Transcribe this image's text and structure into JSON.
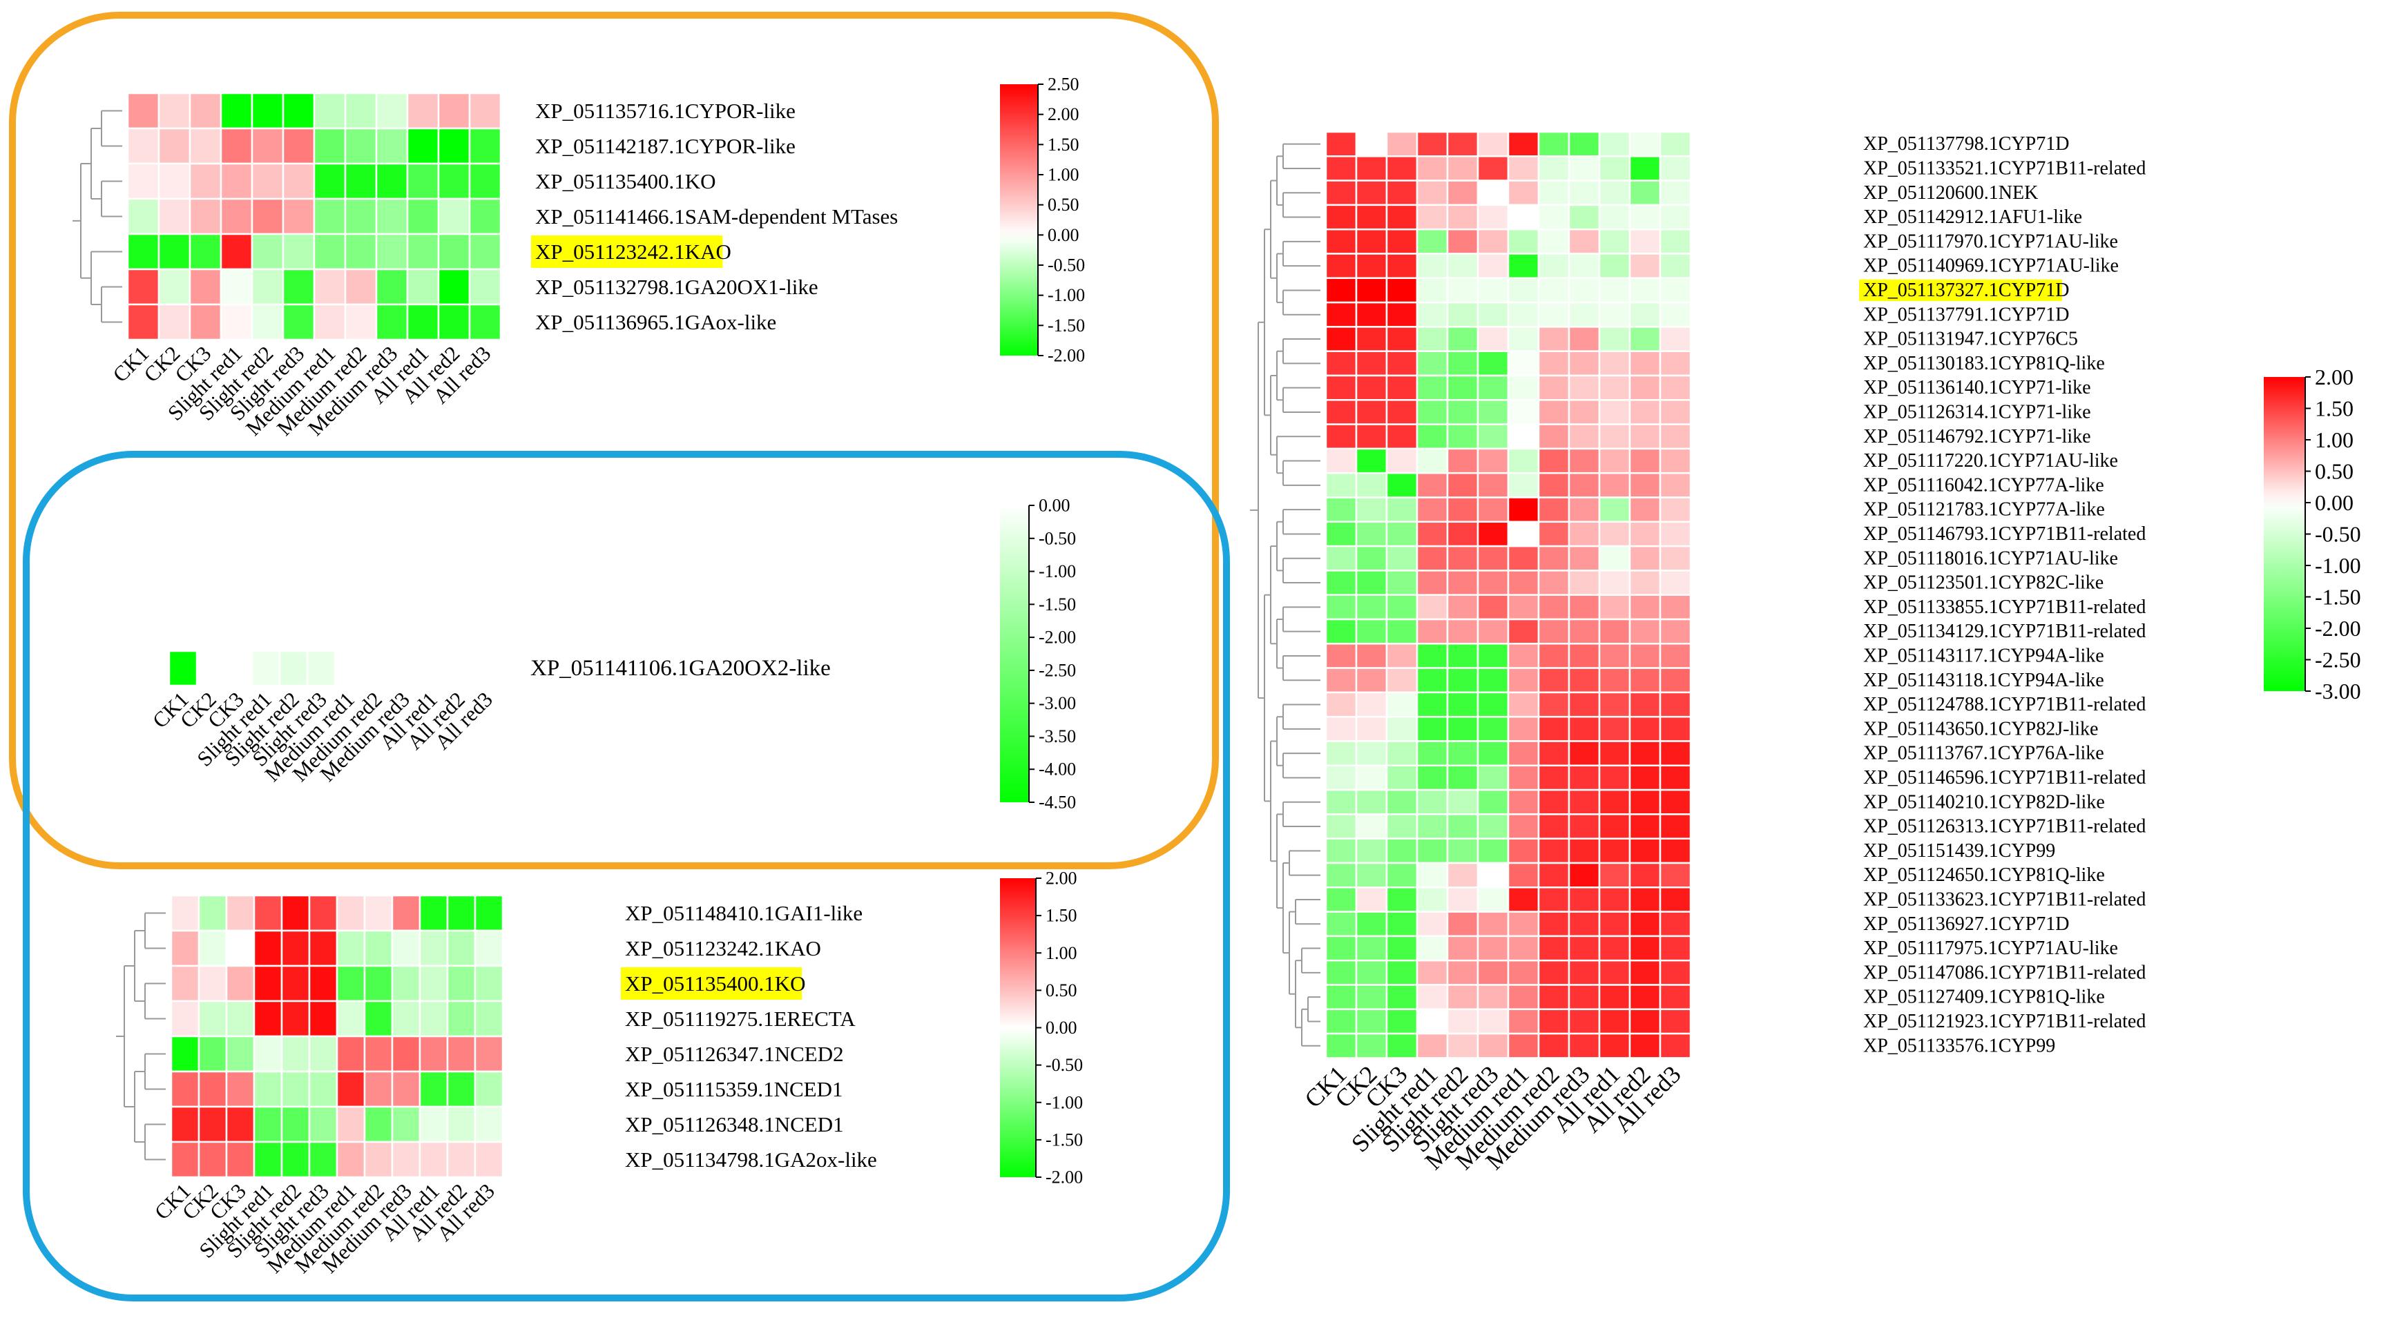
{
  "colors": {
    "orange_outline": "#F5A623",
    "blue_outline": "#1BA4DE",
    "highlight": "#FFFF00",
    "high": "#FF0000",
    "mid": "#FFFFFF",
    "low": "#00FF00",
    "tree": "#999999"
  },
  "chart_data": [
    {
      "id": "heatmap_tl",
      "type": "heatmap",
      "columns": [
        "CK1",
        "CK2",
        "CK3",
        "Slight red1",
        "Slight red2",
        "Slight red3",
        "Medium red1",
        "Medium red2",
        "Medium red3",
        "All red1",
        "All red2",
        "All red3"
      ],
      "rows": [
        "XP_051135716.1CYPOR-like",
        "XP_051142187.1CYPOR-like",
        "XP_051135400.1KO",
        "XP_051141466.1SAM-dependent MTases",
        "XP_051123242.1KAO",
        "XP_051132798.1GA20OX1-like",
        "XP_051136965.1GAox-like"
      ],
      "highlight_rows": [
        4
      ],
      "values": [
        [
          1.0,
          0.4,
          0.7,
          -2.2,
          -2.2,
          -2.2,
          -0.5,
          -0.5,
          -0.3,
          0.6,
          0.8,
          0.6
        ],
        [
          0.3,
          0.6,
          0.4,
          1.3,
          1.0,
          1.3,
          -1.2,
          -1.0,
          -0.8,
          -2.0,
          -2.2,
          -1.6
        ],
        [
          0.2,
          0.2,
          0.6,
          0.8,
          0.6,
          0.6,
          -1.8,
          -1.8,
          -1.8,
          -1.4,
          -1.6,
          -1.6
        ],
        [
          -0.4,
          0.3,
          0.7,
          1.0,
          1.2,
          0.9,
          -1.0,
          -1.0,
          -0.8,
          -1.2,
          -0.4,
          -1.2
        ],
        [
          -1.8,
          -1.8,
          -1.6,
          2.2,
          -0.7,
          -0.6,
          -1.0,
          -1.0,
          -0.8,
          -1.0,
          -1.1,
          -1.0
        ],
        [
          1.8,
          -0.3,
          1.0,
          -0.1,
          -0.4,
          -1.6,
          0.4,
          0.6,
          -1.4,
          -0.6,
          -2.0,
          -0.5
        ],
        [
          1.8,
          0.3,
          1.0,
          0.1,
          -0.2,
          -1.5,
          0.3,
          0.2,
          -1.6,
          -1.8,
          -1.8,
          -1.6
        ]
      ],
      "scale": {
        "min": -2.0,
        "max": 2.5,
        "ticks": [
          "2.50",
          "2.00",
          "1.50",
          "1.00",
          "0.50",
          "0.00",
          "-0.50",
          "-1.00",
          "-1.50",
          "-2.00"
        ]
      }
    },
    {
      "id": "heatmap_mid",
      "type": "heatmap",
      "columns": [
        "CK1",
        "CK2",
        "CK3",
        "Slight red1",
        "Slight red2",
        "Slight red3",
        "Medium red1",
        "Medium red2",
        "Medium red3",
        "All red1",
        "All red2",
        "All red3"
      ],
      "rows": [
        "XP_051141106.1GA20OX2-like"
      ],
      "highlight_rows": [],
      "values": [
        [
          -4.5,
          null,
          null,
          -0.3,
          -0.5,
          -0.4,
          null,
          null,
          null,
          null,
          null,
          null
        ]
      ],
      "scale": {
        "min": -4.5,
        "max": 0.0,
        "ticks": [
          "0.00",
          "-0.50",
          "-1.00",
          "-1.50",
          "-2.00",
          "-2.50",
          "-3.00",
          "-3.50",
          "-4.00",
          "-4.50"
        ]
      }
    },
    {
      "id": "heatmap_bl",
      "type": "heatmap",
      "columns": [
        "CK1",
        "CK2",
        "CK3",
        "Slight red1",
        "Slight red2",
        "Slight red3",
        "Medium red1",
        "Medium red2",
        "Medium red3",
        "All red1",
        "All red2",
        "All red3"
      ],
      "rows": [
        "XP_051148410.1GAI1-like",
        "XP_051123242.1KAO",
        "XP_051135400.1KO",
        "XP_051119275.1ERECTA",
        "XP_051126347.1NCED2",
        "XP_051115359.1NCED1",
        "XP_051126348.1NCED1",
        "XP_051134798.1GA2ox-like"
      ],
      "highlight_rows": [
        2
      ],
      "values": [
        [
          0.2,
          -0.6,
          0.4,
          1.4,
          1.9,
          1.5,
          0.3,
          0.2,
          1.0,
          -1.8,
          -1.8,
          -1.8
        ],
        [
          0.6,
          -0.2,
          0.0,
          1.9,
          1.8,
          1.8,
          -0.5,
          -0.6,
          -0.2,
          -0.4,
          -0.6,
          -0.2
        ],
        [
          0.5,
          0.2,
          0.6,
          1.9,
          1.8,
          1.9,
          -1.4,
          -1.4,
          -0.6,
          -0.4,
          -0.8,
          -0.6
        ],
        [
          0.2,
          -0.4,
          -0.4,
          1.9,
          1.8,
          1.9,
          -0.3,
          -1.6,
          -0.4,
          -0.4,
          -0.8,
          -0.6
        ],
        [
          -1.9,
          -1.2,
          -0.8,
          -0.2,
          -0.4,
          -0.4,
          1.2,
          1.1,
          1.2,
          1.0,
          1.0,
          0.9
        ],
        [
          1.2,
          1.2,
          1.0,
          -0.6,
          -0.6,
          -0.6,
          1.7,
          0.9,
          0.9,
          -1.6,
          -1.6,
          -0.6
        ],
        [
          1.7,
          1.7,
          1.7,
          -1.3,
          -1.3,
          -0.8,
          0.4,
          -1.2,
          -0.8,
          -0.2,
          -0.3,
          -0.2
        ],
        [
          1.2,
          1.2,
          1.2,
          -1.7,
          -1.7,
          -1.6,
          0.6,
          0.4,
          0.3,
          0.3,
          0.3,
          0.3
        ]
      ],
      "scale": {
        "min": -2.0,
        "max": 2.0,
        "ticks": [
          "2.00",
          "1.50",
          "1.00",
          "0.50",
          "0.00",
          "-0.50",
          "-1.00",
          "-1.50",
          "-2.00"
        ]
      }
    },
    {
      "id": "heatmap_right",
      "type": "heatmap",
      "columns": [
        "CK1",
        "CK2",
        "CK3",
        "Slight red1",
        "Slight red2",
        "Slight red3",
        "Medium red1",
        "Medium red2",
        "Medium red3",
        "All red1",
        "All red2",
        "All red3"
      ],
      "rows": [
        "XP_051137798.1CYP71D",
        "XP_051133521.1CYP71B11-related",
        "XP_051120600.1NEK",
        "XP_051142912.1AFU1-like",
        "XP_051117970.1CYP71AU-like",
        "XP_051140969.1CYP71AU-like",
        "XP_051137327.1CYP71D",
        "XP_051137791.1CYP71D",
        "XP_051131947.1CYP76C5",
        "XP_051130183.1CYP81Q-like",
        "XP_051136140.1CYP71-like",
        "XP_051126314.1CYP71-like",
        "XP_051146792.1CYP71-like",
        "XP_051117220.1CYP71AU-like",
        "XP_051116042.1CYP77A-like",
        "XP_051121783.1CYP77A-like",
        "XP_051146793.1CYP71B11-related",
        "XP_051118016.1CYP71AU-like",
        "XP_051123501.1CYP82C-like",
        "XP_051133855.1CYP71B11-related",
        "XP_051134129.1CYP71B11-related",
        "XP_051143117.1CYP94A-like",
        "XP_051143118.1CYP94A-like",
        "XP_051124788.1CYP71B11-related",
        "XP_051143650.1CYP82J-like",
        "XP_051113767.1CYP76A-like",
        "XP_051146596.1CYP71B11-related",
        "XP_051140210.1CYP82D-like",
        "XP_051126313.1CYP71B11-related",
        "XP_051151439.1CYP99",
        "XP_051124650.1CYP81Q-like",
        "XP_051133623.1CYP71B11-related",
        "XP_051136927.1CYP71D",
        "XP_051117975.1CYP71AU-like",
        "XP_051147086.1CYP71B11-related",
        "XP_051127409.1CYP81Q-like",
        "XP_051121923.1CYP71B11-related",
        "XP_051133576.1CYP99"
      ],
      "highlight_rows": [
        6
      ],
      "values": [
        [
          1.6,
          0.0,
          0.6,
          1.5,
          1.5,
          0.3,
          1.8,
          -1.8,
          -2.0,
          -0.5,
          -0.2,
          -0.6
        ],
        [
          1.6,
          1.6,
          1.6,
          0.6,
          0.6,
          1.5,
          0.4,
          -0.4,
          -0.2,
          -0.6,
          -2.6,
          -0.4
        ],
        [
          1.6,
          1.6,
          1.6,
          0.5,
          0.8,
          0.0,
          0.5,
          -0.3,
          -0.3,
          -0.4,
          -1.4,
          -0.3
        ],
        [
          1.7,
          1.7,
          1.7,
          0.4,
          0.5,
          0.2,
          0.0,
          -0.2,
          -0.8,
          -0.3,
          -0.2,
          -0.3
        ],
        [
          1.7,
          1.7,
          1.7,
          -1.4,
          1.0,
          0.5,
          -0.8,
          -0.2,
          0.5,
          -0.6,
          0.2,
          -0.6
        ],
        [
          1.7,
          1.7,
          1.7,
          -0.4,
          -0.4,
          0.2,
          -2.6,
          -0.4,
          -0.3,
          -0.8,
          0.4,
          -0.6
        ],
        [
          2.0,
          2.0,
          2.0,
          -0.3,
          -0.2,
          -0.2,
          -0.3,
          -0.2,
          -0.2,
          -0.2,
          -0.2,
          -0.2
        ],
        [
          1.9,
          1.9,
          1.9,
          -0.4,
          -0.6,
          -0.5,
          -0.3,
          -0.2,
          -0.3,
          -0.2,
          -0.4,
          -0.2
        ],
        [
          1.9,
          1.7,
          1.7,
          -0.8,
          -1.5,
          0.2,
          -0.3,
          0.6,
          0.8,
          -0.6,
          -1.2,
          0.2
        ],
        [
          1.6,
          1.6,
          1.6,
          -1.4,
          -1.8,
          -2.2,
          -0.1,
          0.6,
          0.6,
          0.4,
          0.6,
          0.5
        ],
        [
          1.6,
          1.6,
          1.6,
          -1.6,
          -1.8,
          -1.6,
          -0.2,
          0.6,
          0.4,
          0.4,
          0.6,
          0.5
        ],
        [
          1.6,
          1.6,
          1.6,
          -1.6,
          -1.6,
          -1.4,
          -0.1,
          0.7,
          0.6,
          0.3,
          0.5,
          0.5
        ],
        [
          1.6,
          1.6,
          1.6,
          -1.8,
          -1.6,
          -1.2,
          0.0,
          0.8,
          0.5,
          0.4,
          0.5,
          0.5
        ],
        [
          0.2,
          -2.6,
          0.2,
          -0.3,
          1.0,
          0.8,
          -0.6,
          1.2,
          1.0,
          0.6,
          0.9,
          0.6
        ],
        [
          -0.7,
          -0.7,
          -2.6,
          1.0,
          1.2,
          1.0,
          -0.4,
          1.2,
          1.0,
          0.8,
          0.9,
          0.6
        ],
        [
          -1.5,
          -0.8,
          -1.0,
          1.0,
          1.2,
          1.0,
          2.0,
          1.2,
          0.8,
          -1.0,
          0.8,
          0.4
        ],
        [
          -2.0,
          -1.4,
          -1.4,
          1.3,
          1.5,
          1.9,
          0.0,
          1.2,
          0.6,
          0.4,
          0.5,
          0.3
        ],
        [
          -1.0,
          -1.6,
          -1.0,
          1.2,
          1.2,
          1.2,
          1.3,
          1.0,
          0.8,
          -0.2,
          0.6,
          0.4
        ],
        [
          -2.0,
          -2.0,
          -1.4,
          1.0,
          1.0,
          1.0,
          1.0,
          0.8,
          0.4,
          0.2,
          0.4,
          0.2
        ],
        [
          -1.6,
          -1.6,
          -1.6,
          0.4,
          0.8,
          1.2,
          0.8,
          1.0,
          1.0,
          0.6,
          0.8,
          0.8
        ],
        [
          -2.2,
          -1.8,
          -1.8,
          0.8,
          0.8,
          0.8,
          1.4,
          1.0,
          1.0,
          1.0,
          0.8,
          0.8
        ],
        [
          1.0,
          1.0,
          0.6,
          -2.3,
          -2.3,
          -2.3,
          0.8,
          1.2,
          1.2,
          1.0,
          1.0,
          1.0
        ],
        [
          0.8,
          0.8,
          0.4,
          -2.3,
          -2.3,
          -2.3,
          0.8,
          1.4,
          1.4,
          1.2,
          1.2,
          1.2
        ],
        [
          0.4,
          0.2,
          -0.2,
          -2.3,
          -2.3,
          -2.3,
          0.6,
          1.4,
          1.5,
          1.4,
          1.5,
          1.5
        ],
        [
          0.2,
          0.2,
          -0.4,
          -2.3,
          -2.3,
          -2.2,
          0.8,
          1.6,
          1.6,
          1.5,
          1.6,
          1.6
        ],
        [
          -0.6,
          -0.5,
          -0.8,
          -1.8,
          -1.8,
          -2.0,
          1.0,
          1.6,
          1.8,
          1.7,
          1.8,
          1.8
        ],
        [
          -0.4,
          -0.2,
          -1.0,
          -2.0,
          -2.0,
          -1.2,
          1.0,
          1.6,
          1.6,
          1.6,
          1.8,
          1.8
        ],
        [
          -1.0,
          -1.0,
          -1.4,
          -1.0,
          -0.8,
          -1.6,
          1.0,
          1.6,
          1.6,
          1.7,
          1.8,
          1.8
        ],
        [
          -0.8,
          -0.2,
          -1.0,
          -1.2,
          -1.4,
          -1.2,
          1.0,
          1.6,
          1.6,
          1.7,
          1.8,
          1.8
        ],
        [
          -1.2,
          -1.0,
          -1.6,
          -1.6,
          -1.4,
          -1.6,
          1.2,
          1.6,
          1.7,
          1.7,
          1.8,
          1.8
        ],
        [
          -1.4,
          -1.2,
          -1.6,
          -0.2,
          0.4,
          0.0,
          1.2,
          1.6,
          1.9,
          1.4,
          1.6,
          1.4
        ],
        [
          -1.8,
          0.2,
          -2.2,
          -0.4,
          0.2,
          -0.2,
          1.8,
          1.6,
          1.6,
          1.6,
          1.8,
          1.8
        ],
        [
          -1.6,
          -2.0,
          -2.2,
          0.2,
          1.0,
          0.8,
          0.8,
          1.6,
          1.6,
          1.6,
          1.8,
          1.6
        ],
        [
          -1.8,
          -1.6,
          -2.2,
          -0.2,
          0.8,
          0.8,
          0.8,
          1.6,
          1.6,
          1.6,
          1.8,
          1.6
        ],
        [
          -1.8,
          -1.6,
          -2.2,
          0.6,
          0.8,
          1.0,
          1.0,
          1.6,
          1.6,
          1.6,
          1.8,
          1.6
        ],
        [
          -1.8,
          -1.6,
          -2.2,
          0.2,
          0.6,
          0.6,
          1.0,
          1.6,
          1.6,
          1.7,
          1.8,
          1.6
        ],
        [
          -1.8,
          -1.6,
          -2.2,
          0.0,
          0.2,
          0.2,
          1.0,
          1.6,
          1.6,
          1.7,
          1.8,
          1.6
        ],
        [
          -1.8,
          -1.6,
          -2.2,
          0.6,
          0.4,
          0.6,
          1.2,
          1.6,
          1.6,
          1.7,
          1.8,
          1.6
        ]
      ],
      "scale": {
        "min": -3.0,
        "max": 2.0,
        "ticks": [
          "2.00",
          "1.50",
          "1.00",
          "0.50",
          "0.00",
          "-0.50",
          "-1.00",
          "-1.50",
          "-2.00",
          "-2.50",
          "-3.00"
        ]
      }
    }
  ]
}
